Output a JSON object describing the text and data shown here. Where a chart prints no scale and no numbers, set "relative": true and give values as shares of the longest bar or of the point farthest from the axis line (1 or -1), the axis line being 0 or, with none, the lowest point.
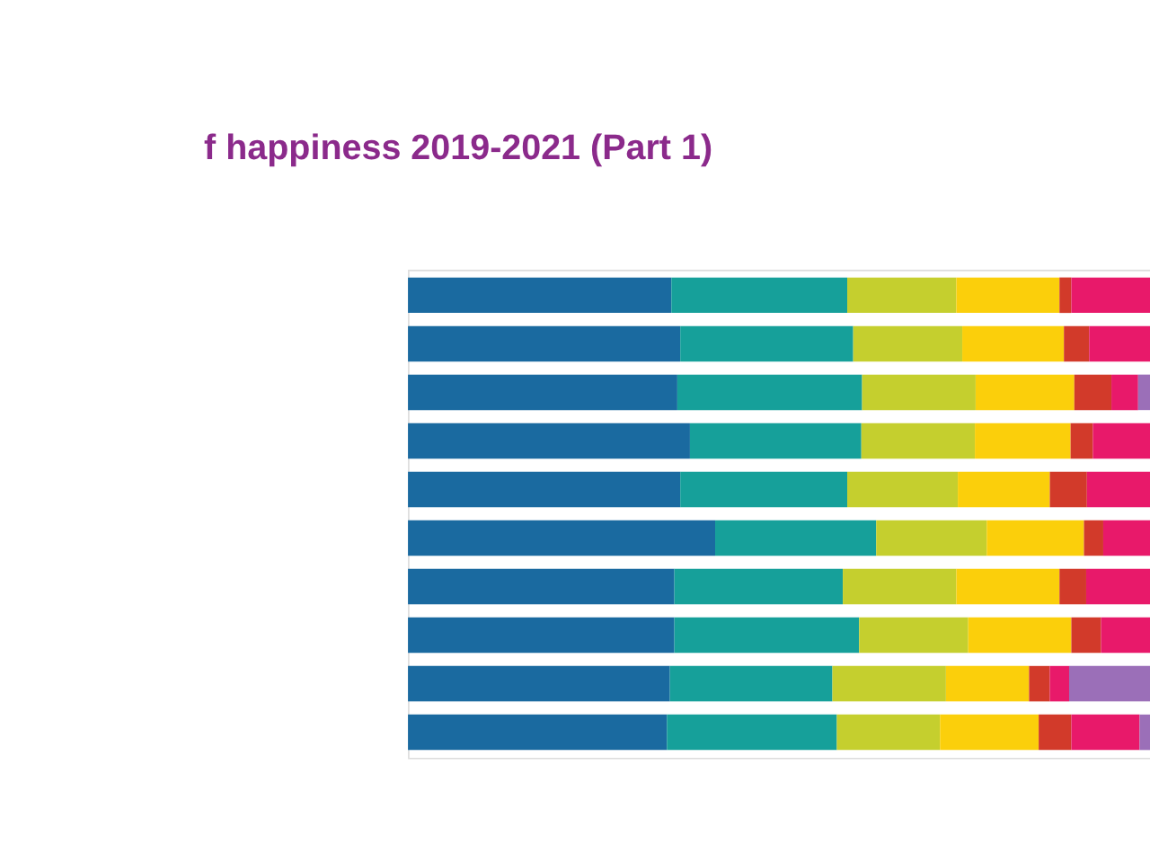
{
  "chart_data": {
    "type": "bar",
    "orientation": "horizontal",
    "stacked": true,
    "relative": true,
    "title": "f happiness 2019-2021 (Part 1)",
    "categories": [
      null,
      null,
      null,
      null,
      null,
      null,
      null,
      null,
      null,
      null
    ],
    "series": [
      {
        "color": "#1a6aa0",
        "values": [
          0.355,
          0.367,
          0.363,
          0.38,
          0.367,
          0.414,
          0.359,
          0.359,
          0.353,
          0.349
        ]
      },
      {
        "color": "#16a09a",
        "values": [
          0.237,
          0.233,
          0.249,
          0.231,
          0.225,
          0.217,
          0.227,
          0.249,
          0.219,
          0.229
        ]
      },
      {
        "color": "#c5cf2e",
        "values": [
          0.147,
          0.147,
          0.153,
          0.153,
          0.149,
          0.149,
          0.153,
          0.147,
          0.153,
          0.139
        ]
      },
      {
        "color": "#fbcf0b",
        "values": [
          0.139,
          0.137,
          0.133,
          0.129,
          0.124,
          0.131,
          0.139,
          0.139,
          0.112,
          0.133
        ]
      },
      {
        "color": "#d23a2a",
        "values": [
          0.016,
          0.034,
          0.05,
          0.03,
          0.05,
          0.026,
          0.036,
          0.04,
          0.028,
          0.044
        ]
      },
      {
        "color": "#e8196a",
        "values": [
          0.106,
          0.082,
          0.036,
          0.077,
          0.085,
          0.063,
          0.086,
          0.066,
          0.026,
          0.092
        ]
      },
      {
        "color": "#9b6fb8",
        "values": [
          null,
          null,
          0.016,
          null,
          null,
          null,
          null,
          null,
          0.109,
          0.014
        ]
      }
    ]
  }
}
